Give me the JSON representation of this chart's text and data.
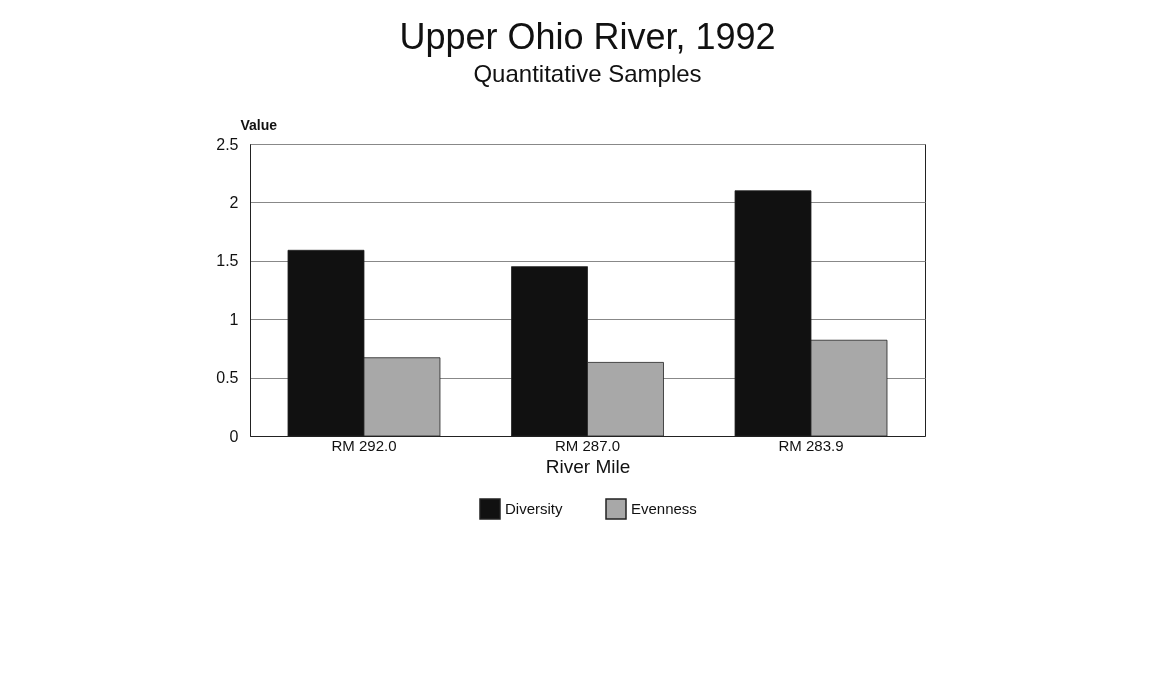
{
  "chart_data": {
    "type": "bar",
    "title": "Upper Ohio River, 1992",
    "subtitle": "Quantitative Samples",
    "xlabel": "River Mile",
    "ylabel": "Value",
    "categories": [
      "RM 292.0",
      "RM 287.0",
      "RM 283.9"
    ],
    "series": [
      {
        "name": "Diversity",
        "color": "#111111",
        "values": [
          1.59,
          1.45,
          2.1
        ]
      },
      {
        "name": "Evenness",
        "color": "#a8a8a8",
        "values": [
          0.67,
          0.63,
          0.82
        ]
      }
    ],
    "ylim": [
      0,
      2.5
    ],
    "yticks": [
      0,
      0.5,
      1,
      1.5,
      2,
      2.5
    ],
    "grid": "y",
    "legend": "bottom"
  }
}
